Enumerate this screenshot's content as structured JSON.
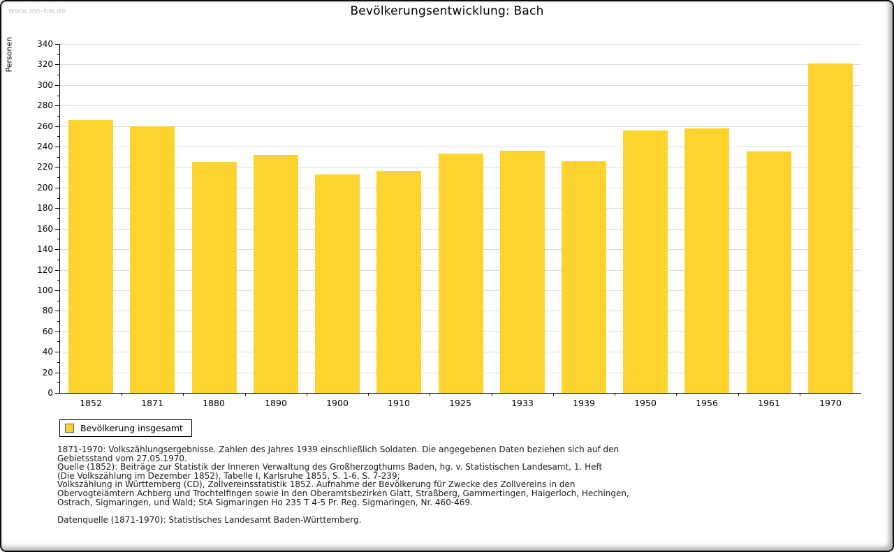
{
  "watermark": "www.leo-bw.de",
  "title": "Bevölkerungsentwicklung: Bach",
  "chart_data": {
    "type": "bar",
    "title": "Bevölkerungsentwicklung: Bach",
    "xlabel": "",
    "ylabel": "Personen",
    "categories": [
      "1852",
      "1871",
      "1880",
      "1890",
      "1900",
      "1910",
      "1925",
      "1933",
      "1939",
      "1950",
      "1956",
      "1961",
      "1970"
    ],
    "values": [
      266,
      260,
      225,
      232,
      213,
      216,
      233,
      236,
      226,
      256,
      258,
      235,
      321
    ],
    "series_name": "Bevölkerung insgesamt",
    "ylim": [
      0,
      340
    ],
    "ytick_major": 20,
    "ytick_minor": 10,
    "grid": true,
    "legend_position": "bottom-left"
  },
  "legend": {
    "label": "Bevölkerung insgesamt"
  },
  "footer": {
    "lines": [
      "1871-1970: Volkszählungsergebnisse. Zahlen des Jahres 1939 einschließlich Soldaten. Die angegebenen Daten beziehen sich auf den",
      "Gebietsstand vom 27.05.1970.",
      "Quelle (1852): Beiträge zur Statistik der Inneren Verwaltung des Großherzogthums Baden, hg. v. Statistischen Landesamt, 1. Heft",
      "(Die Volkszählung im Dezember 1852), Tabelle I, Karlsruhe 1855, S. 1-6, S. 7-239;",
      "Volkszählung in Württemberg (CD), Zollvereinsstatistik 1852. Aufnahme der Bevölkerung für Zwecke des Zollvereins in den",
      "Obervogteiämtern Achberg und Trochtelfingen sowie in den Oberamtsbezirken Glatt, Straßberg, Gammertingen, Haigerloch, Hechingen,",
      "Ostrach, Sigmaringen, und Wald; StA Sigmaringen Ho 235 T 4-5 Pr. Reg. Sigmaringen, Nr. 460-469."
    ],
    "datasource": "Datenquelle (1871-1970): Statistisches Landesamt Baden-Württemberg."
  },
  "colors": {
    "bar": "#FDD32D",
    "grid": "#DCDCDC",
    "axis": "#000000",
    "watermark": "#CCCCCC"
  }
}
